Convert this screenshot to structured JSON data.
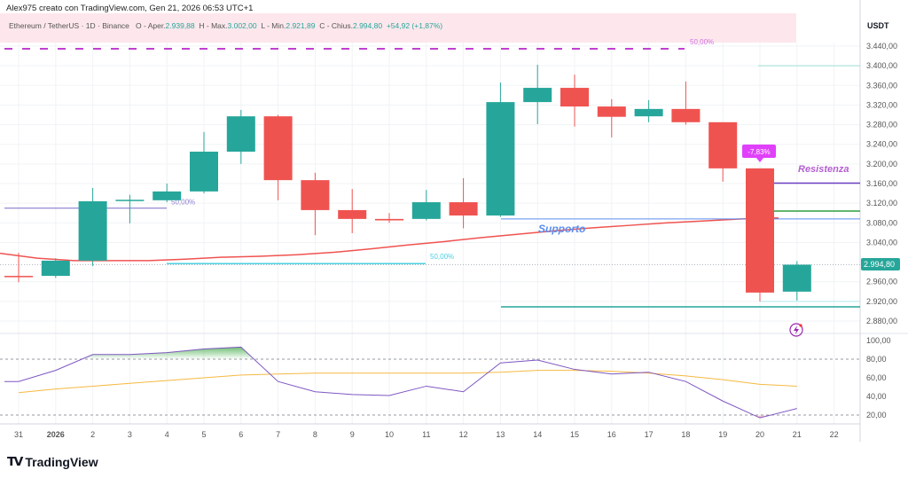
{
  "credit": "Alex975 creato con TradingView.com, Gen 21, 2026 06:53 UTC+1",
  "legend": {
    "symbol": "Ethereum / TetherUS · 1D · Binance",
    "open_label": "O - Aper.",
    "open": "2.939,88",
    "high_label": "H - Max.",
    "high": "3.002,00",
    "low_label": "L - Min.",
    "low": "2.921,89",
    "close_label": "C - Chius.",
    "close": "2.994,80",
    "change": "+54,92 (+1,87%)"
  },
  "colors": {
    "up": "#26a69a",
    "down": "#ef5350",
    "ma": "#ef5350",
    "rsi": "#7e57c2",
    "rsi_ma": "#f5b942",
    "accent": "#e040fb"
  },
  "chart_data": {
    "type": "candlestick",
    "currency": "USDT",
    "x_labels": [
      "31",
      "2026",
      "2",
      "3",
      "4",
      "5",
      "6",
      "7",
      "8",
      "9",
      "10",
      "11",
      "12",
      "13",
      "14",
      "15",
      "16",
      "17",
      "18",
      "19",
      "20",
      "21",
      "22"
    ],
    "y_ticks": [
      "3.440,00",
      "3.400,00",
      "3.360,00",
      "3.320,00",
      "3.280,00",
      "3.240,00",
      "3.200,00",
      "3.160,00",
      "3.120,00",
      "3.080,00",
      "3.040,00",
      "2.960,00",
      "2.920,00",
      "2.880,00"
    ],
    "y_tick_values": [
      3440,
      3400,
      3360,
      3320,
      3280,
      3240,
      3200,
      3160,
      3120,
      3080,
      3040,
      2960,
      2920,
      2880
    ],
    "ylim": [
      2870,
      3465
    ],
    "current_price": 2994.8,
    "current_price_label": "2.994,80",
    "candles": [
      {
        "o": 2972,
        "h": 3019,
        "l": 2959,
        "c": 2971
      },
      {
        "o": 2972,
        "h": 3008,
        "l": 2968,
        "c": 3003
      },
      {
        "o": 3003,
        "h": 3151,
        "l": 2992,
        "c": 3124
      },
      {
        "o": 3125,
        "h": 3137,
        "l": 3079,
        "c": 3127
      },
      {
        "o": 3126,
        "h": 3160,
        "l": 3122,
        "c": 3144
      },
      {
        "o": 3144,
        "h": 3265,
        "l": 3140,
        "c": 3225
      },
      {
        "o": 3225,
        "h": 3310,
        "l": 3200,
        "c": 3297
      },
      {
        "o": 3297,
        "h": 3300,
        "l": 3126,
        "c": 3167
      },
      {
        "o": 3167,
        "h": 3182,
        "l": 3055,
        "c": 3106
      },
      {
        "o": 3106,
        "h": 3149,
        "l": 3059,
        "c": 3088
      },
      {
        "o": 3088,
        "h": 3100,
        "l": 3080,
        "c": 3085
      },
      {
        "o": 3088,
        "h": 3147,
        "l": 3085,
        "c": 3122
      },
      {
        "o": 3122,
        "h": 3171,
        "l": 3069,
        "c": 3095
      },
      {
        "o": 3095,
        "h": 3366,
        "l": 3092,
        "c": 3326
      },
      {
        "o": 3326,
        "h": 3402,
        "l": 3281,
        "c": 3355
      },
      {
        "o": 3355,
        "h": 3382,
        "l": 3276,
        "c": 3317
      },
      {
        "o": 3317,
        "h": 3332,
        "l": 3254,
        "c": 3296
      },
      {
        "o": 3297,
        "h": 3330,
        "l": 3285,
        "c": 3312
      },
      {
        "o": 3312,
        "h": 3368,
        "l": 3280,
        "c": 3285
      },
      {
        "o": 3285,
        "h": 3285,
        "l": 3164,
        "c": 3191
      },
      {
        "o": 3191,
        "h": 3191,
        "l": 2920,
        "c": 2938
      },
      {
        "o": 2939.88,
        "h": 3002,
        "l": 2921.89,
        "c": 2994.8
      }
    ],
    "moving_average": [
      3018,
      3008,
      3003,
      3003,
      3003,
      3006,
      3010,
      3012,
      3015,
      3020,
      3027,
      3035,
      3042,
      3050,
      3057,
      3064,
      3070,
      3075,
      3080,
      3084,
      3088,
      3090
    ],
    "rsi": {
      "ticks": [
        "100,00",
        "80,00",
        "60,00",
        "40,00",
        "20,00"
      ],
      "tick_values": [
        100,
        80,
        60,
        40,
        20
      ],
      "levels": [
        80,
        20
      ],
      "values": [
        56,
        68,
        85,
        85,
        87,
        91,
        93,
        56,
        45,
        42,
        41,
        51,
        45,
        76,
        79,
        69,
        64,
        66,
        56,
        35,
        17,
        27
      ],
      "ma": [
        44,
        48,
        51,
        54,
        57,
        60,
        63,
        64,
        65,
        65,
        65,
        65,
        65,
        66,
        68,
        68,
        67,
        65,
        62,
        58,
        53,
        51
      ]
    },
    "annotations": {
      "fib_top": {
        "price": 3432,
        "label": "50,00%"
      },
      "fib_left": {
        "price": 3110,
        "label": "50,00%"
      },
      "fib_mid": {
        "price": 2997,
        "label": "50,00%"
      },
      "support": {
        "price": 3088,
        "label": "Supporto"
      },
      "support_low": {
        "price": 2909
      },
      "resistance": {
        "price": 3161,
        "label": "Resistenza"
      },
      "level_green": {
        "price": 3104
      },
      "level_top": {
        "price": 3400
      },
      "level_low": {
        "price": 2920
      },
      "drop_label": "-7,83%"
    }
  },
  "brand": {
    "name": "TradingView",
    "mark": "TV"
  }
}
